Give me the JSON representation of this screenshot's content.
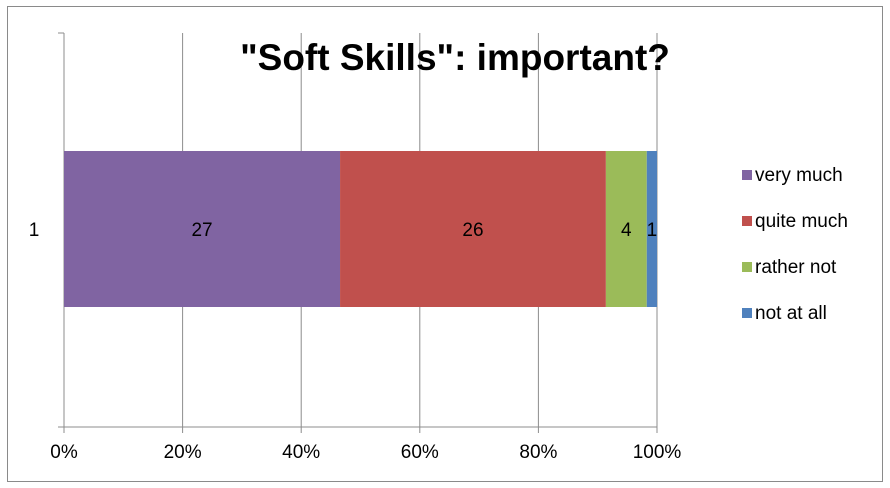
{
  "chart_data": {
    "type": "bar",
    "orientation": "horizontal",
    "stacked": "percent",
    "title": "\"Soft Skills\": important?",
    "categories": [
      "1"
    ],
    "series": [
      {
        "name": "very much",
        "values": [
          27
        ],
        "color": "#8064A2"
      },
      {
        "name": "quite much",
        "values": [
          26
        ],
        "color": "#C0504D"
      },
      {
        "name": "rather not",
        "values": [
          4
        ],
        "color": "#9BBB59"
      },
      {
        "name": "not at all",
        "values": [
          1
        ],
        "color": "#4F81BD"
      }
    ],
    "xticks": [
      "0%",
      "20%",
      "40%",
      "60%",
      "80%",
      "100%"
    ],
    "xlim": [
      0,
      100
    ],
    "grid": true,
    "legend_position": "right"
  }
}
